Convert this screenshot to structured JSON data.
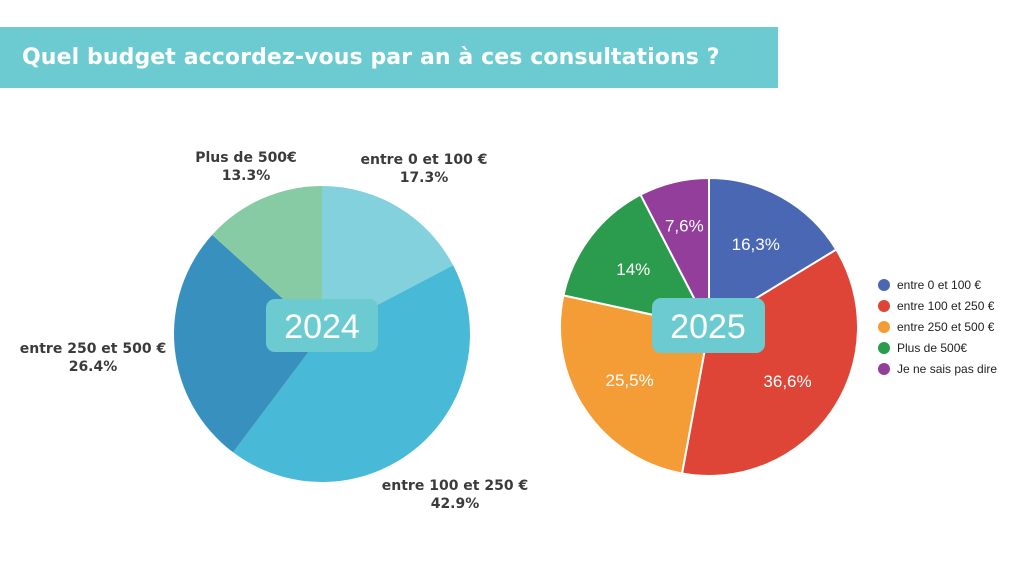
{
  "title": "Quel budget accordez-vous par an à ces consultations ?",
  "colors": {
    "title_bg": "#6ccbd1",
    "badge_bg": "#6ccbd1"
  },
  "chart_data": [
    {
      "type": "pie",
      "year_label": "2024",
      "slices": [
        {
          "label": "entre 0 et 100 €",
          "value": 17.3,
          "value_text": "17.3%",
          "color": "#83d1dc"
        },
        {
          "label": "entre 100 et 250 €",
          "value": 42.9,
          "value_text": "42.9%",
          "color": "#48b9d6"
        },
        {
          "label": "entre 250 et 500 €",
          "value": 26.4,
          "value_text": "26.4%",
          "color": "#3890bf"
        },
        {
          "label": "Plus de 500€",
          "value": 13.3,
          "value_text": "13.3%",
          "color": "#86cba4"
        }
      ]
    },
    {
      "type": "pie",
      "year_label": "2025",
      "slices": [
        {
          "label": "entre 0 et 100 €",
          "value": 16.3,
          "value_text": "16,3%",
          "color": "#4a67b3"
        },
        {
          "label": "entre 100 et 250 €",
          "value": 36.6,
          "value_text": "36,6%",
          "color": "#de4536"
        },
        {
          "label": "entre 250 et 500 €",
          "value": 25.5,
          "value_text": "25,5%",
          "color": "#f49c36"
        },
        {
          "label": "Plus de 500€",
          "value": 14,
          "value_text": "14%",
          "color": "#2b9c4d"
        },
        {
          "label": "Je ne sais pas dire",
          "value": 7.6,
          "value_text": "7,6%",
          "color": "#923e9a"
        }
      ],
      "legend": [
        "entre 0 et 100 €",
        "entre 100 et 250 €",
        "entre 250 et 500 €",
        "Plus de 500€",
        "Je ne sais pas dire"
      ],
      "legend_position": "right"
    }
  ]
}
